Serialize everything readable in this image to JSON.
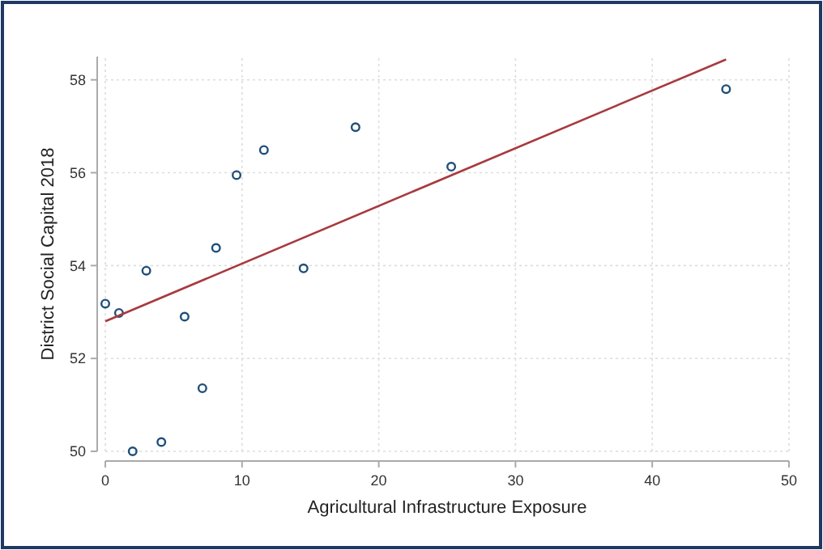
{
  "chart_data": {
    "type": "scatter",
    "xlabel": "Agricultural Infrastructure Exposure",
    "ylabel": "District Social Capital 2018",
    "xlim": [
      0,
      50
    ],
    "xticks": [
      0,
      10,
      20,
      30,
      40,
      50
    ],
    "ylim": [
      50,
      58.5
    ],
    "yticks": [
      50,
      52,
      54,
      56,
      58
    ],
    "grid": true,
    "marker": "circle",
    "series": [
      {
        "color": "#1f4e79",
        "x": [
          0,
          1,
          2,
          3,
          4.1,
          5.8,
          7.1,
          8.1,
          9.6,
          11.6,
          14.5,
          18.3,
          25.3,
          45.4
        ],
        "values": [
          53.18,
          52.98,
          50.0,
          53.89,
          50.2,
          52.9,
          51.36,
          54.38,
          55.95,
          56.49,
          53.94,
          56.98,
          56.13,
          57.8
        ]
      },
      {
        "type": "line",
        "color": "#a83a3f",
        "line_style": "solid",
        "marker": "none",
        "x": [
          0,
          45.4
        ],
        "values": [
          52.8,
          58.44
        ]
      }
    ]
  }
}
